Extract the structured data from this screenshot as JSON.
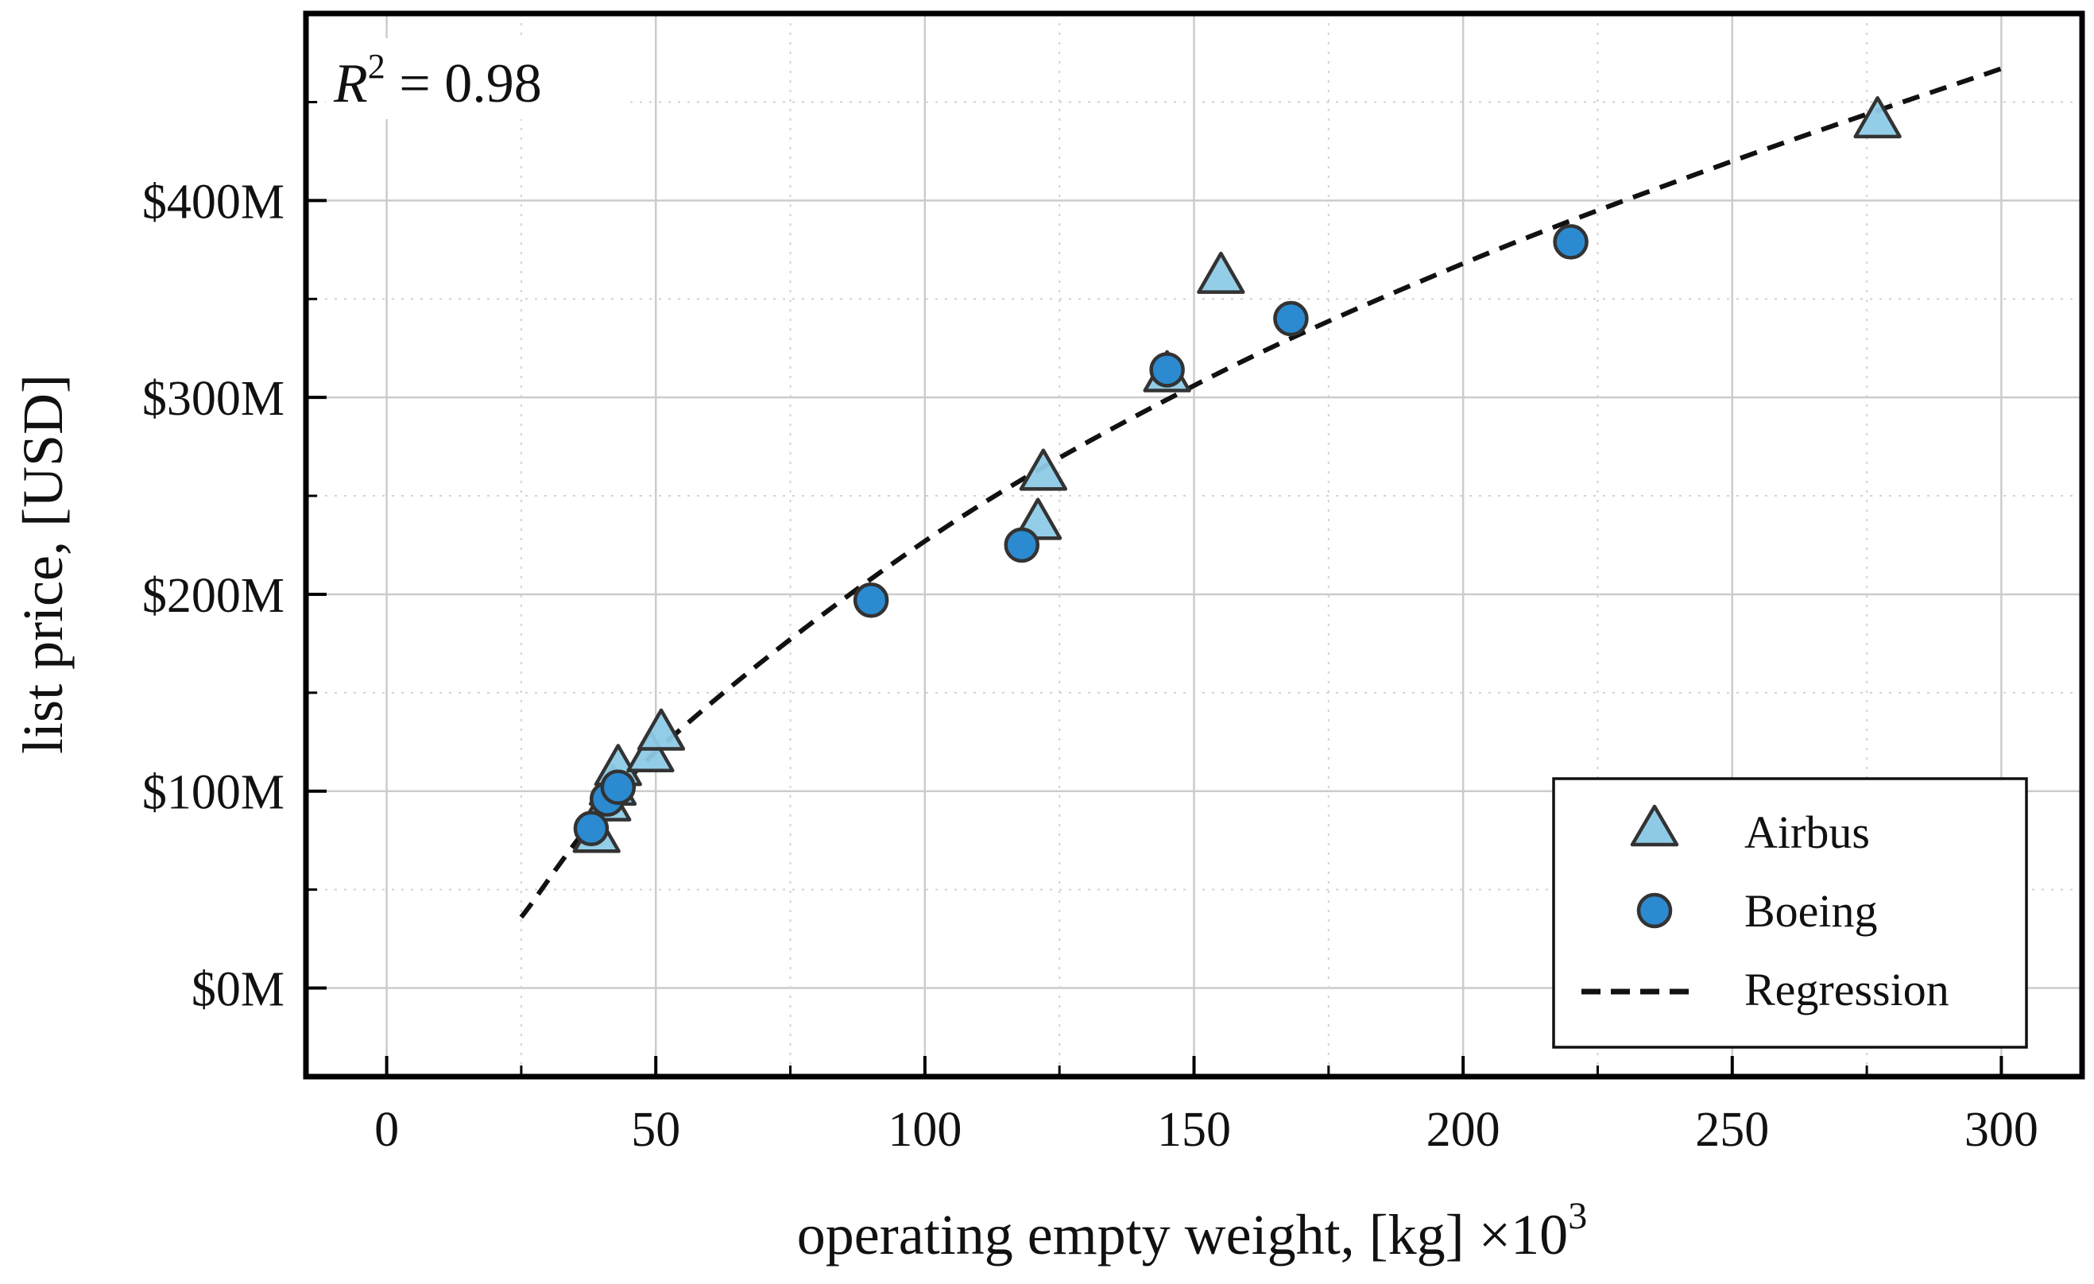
{
  "chart_data": {
    "type": "scatter",
    "title": "",
    "xlabel": "operating empty weight, [kg] ×10",
    "xlabel_superscript": "3",
    "ylabel": "list price, [USD]",
    "xlim": [
      -15,
      315
    ],
    "ylim": [
      -45,
      495
    ],
    "x_ticks": [
      0,
      50,
      100,
      150,
      200,
      250,
      300
    ],
    "x_tick_labels": [
      "0",
      "50",
      "100",
      "150",
      "200",
      "250",
      "300"
    ],
    "x_minor_ticks": [
      25,
      75,
      125,
      175,
      225,
      275
    ],
    "y_ticks": [
      0,
      100,
      200,
      300,
      400
    ],
    "y_tick_labels": [
      "$0M",
      "$100M",
      "$200M",
      "$300M",
      "$400M"
    ],
    "y_minor_ticks": [
      50,
      150,
      250,
      350,
      450
    ],
    "grid": true,
    "annotation": {
      "label": "R",
      "superscript": "2",
      "value_text": " = 0.98"
    },
    "legend": {
      "placement": "bottom-right",
      "entries": [
        {
          "name": "Airbus",
          "marker": "triangle"
        },
        {
          "name": "Boeing",
          "marker": "circle"
        },
        {
          "name": "Regression",
          "marker": "dashed-line"
        }
      ]
    },
    "series": [
      {
        "name": "Airbus",
        "marker": "triangle",
        "color": "#8ecae6",
        "points": [
          {
            "x": 39,
            "y": 77
          },
          {
            "x": 41,
            "y": 93
          },
          {
            "x": 42,
            "y": 101
          },
          {
            "x": 43,
            "y": 111
          },
          {
            "x": 49,
            "y": 118
          },
          {
            "x": 51,
            "y": 129
          },
          {
            "x": 121,
            "y": 236
          },
          {
            "x": 122,
            "y": 261
          },
          {
            "x": 145,
            "y": 311
          },
          {
            "x": 155,
            "y": 361
          },
          {
            "x": 277,
            "y": 440
          }
        ]
      },
      {
        "name": "Boeing",
        "color": "#2b8ad0",
        "marker": "circle",
        "points": [
          {
            "x": 38,
            "y": 81
          },
          {
            "x": 41,
            "y": 96
          },
          {
            "x": 43,
            "y": 102
          },
          {
            "x": 90,
            "y": 197
          },
          {
            "x": 118,
            "y": 225
          },
          {
            "x": 145,
            "y": 314
          },
          {
            "x": 168,
            "y": 340
          },
          {
            "x": 220,
            "y": 379
          }
        ]
      },
      {
        "name": "Regression",
        "marker": "dashed-line",
        "color": "#111111",
        "x_range": [
          25,
          300
        ],
        "points": [
          {
            "x": 25,
            "y": 36
          },
          {
            "x": 50,
            "y": 120
          },
          {
            "x": 100,
            "y": 227
          },
          {
            "x": 150,
            "y": 306
          },
          {
            "x": 200,
            "y": 368
          },
          {
            "x": 250,
            "y": 420
          },
          {
            "x": 300,
            "y": 467
          }
        ]
      }
    ]
  }
}
